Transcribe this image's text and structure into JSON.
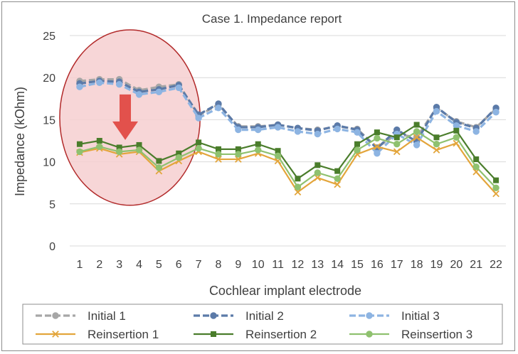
{
  "chart_data": {
    "type": "line",
    "title": "Case 1. Impedance report",
    "xlabel": "Cochlear implant electrode",
    "ylabel": "Impedance (kOhm)",
    "ylim": [
      0,
      25
    ],
    "yticks": [
      0,
      5,
      10,
      15,
      20,
      25
    ],
    "grid": "horizontal",
    "legend_position": "bottom",
    "categories": [
      "1",
      "2",
      "3",
      "4",
      "5",
      "6",
      "7",
      "8",
      "9",
      "10",
      "11",
      "12",
      "13",
      "14",
      "15",
      "16",
      "17",
      "18",
      "19",
      "20",
      "21",
      "22"
    ],
    "series": [
      {
        "name": "Initial 1",
        "color": "#a6a6a6",
        "style": "dashed",
        "marker": "circle",
        "values": [
          19.6,
          19.8,
          19.8,
          18.5,
          18.9,
          19.2,
          15.5,
          16.8,
          14.2,
          14.2,
          14.4,
          14.0,
          13.8,
          14.2,
          13.9,
          11.7,
          13.3,
          12.9,
          16.4,
          14.8,
          14.1,
          16.3
        ]
      },
      {
        "name": "Initial 2",
        "color": "#5b7aa8",
        "style": "dashed",
        "marker": "circle",
        "values": [
          19.3,
          19.6,
          19.5,
          18.3,
          18.6,
          19.1,
          15.6,
          16.9,
          14.1,
          14.1,
          14.4,
          14.0,
          13.7,
          14.3,
          13.8,
          11.6,
          13.8,
          12.4,
          16.5,
          14.7,
          14.0,
          16.4
        ]
      },
      {
        "name": "Initial 3",
        "color": "#8db4e2",
        "style": "dashed",
        "marker": "circle",
        "values": [
          18.9,
          19.4,
          19.2,
          18.0,
          18.3,
          18.8,
          15.2,
          16.4,
          13.8,
          13.8,
          14.1,
          13.6,
          13.3,
          13.9,
          13.5,
          11.0,
          13.3,
          12.0,
          16.0,
          14.3,
          13.6,
          15.9
        ]
      },
      {
        "name": "Reinsertion 1",
        "color": "#e3a53b",
        "style": "solid",
        "marker": "x",
        "values": [
          11.1,
          11.6,
          10.9,
          11.2,
          8.9,
          10.1,
          11.2,
          10.3,
          10.3,
          11.0,
          10.1,
          6.4,
          8.1,
          7.3,
          10.9,
          11.8,
          11.2,
          12.9,
          11.4,
          12.2,
          8.8,
          6.2
        ]
      },
      {
        "name": "Reinsertion 2",
        "color": "#4a7d2b",
        "style": "solid",
        "marker": "square",
        "values": [
          12.1,
          12.5,
          11.7,
          12.0,
          10.1,
          11.0,
          12.3,
          11.5,
          11.5,
          12.1,
          11.3,
          8.0,
          9.6,
          8.9,
          12.1,
          13.5,
          12.9,
          14.4,
          12.9,
          13.7,
          10.3,
          7.8
        ]
      },
      {
        "name": "Reinsertion 3",
        "color": "#8fc16f",
        "style": "solid",
        "marker": "circle",
        "values": [
          11.2,
          11.8,
          11.2,
          11.4,
          9.3,
          10.5,
          11.6,
          10.9,
          10.9,
          11.4,
          10.7,
          7.0,
          8.7,
          8.0,
          11.4,
          12.8,
          12.1,
          13.6,
          12.1,
          12.9,
          9.4,
          6.9
        ]
      }
    ],
    "annotations": [
      {
        "type": "ellipse",
        "description": "highlight",
        "x_range": [
          1,
          6
        ],
        "y_range": [
          5,
          25
        ],
        "fill": "#f6cfd0",
        "stroke": "#b22a2a"
      },
      {
        "type": "arrow",
        "direction": "down",
        "x": 3.3,
        "y_from": 18,
        "y_to": 12.6,
        "color": "#e2514c"
      }
    ]
  }
}
